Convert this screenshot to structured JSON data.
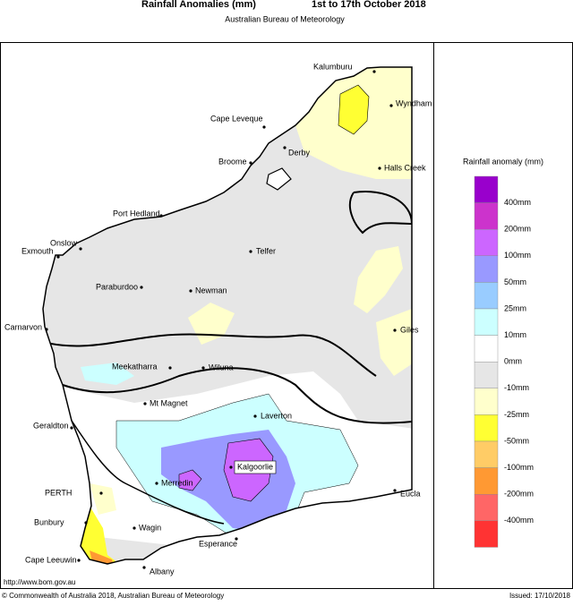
{
  "header": {
    "title": "Rainfall Anomalies (mm)",
    "period": "1st to 17th October 2018",
    "subtitle": "Australian Bureau of Meteorology"
  },
  "map": {
    "places": [
      "Kalumburu",
      "Wyndham",
      "Cape Leveque",
      "Derby",
      "Halls Creek",
      "Broome",
      "Port Hedland",
      "Onslow",
      "Exmouth",
      "Telfer",
      "Paraburdoo",
      "Newman",
      "Carnarvon",
      "Giles",
      "Meekatharra",
      "Wiluna",
      "Mt Magnet",
      "Laverton",
      "Geraldton",
      "Kalgoorlie",
      "Merredin",
      "PERTH",
      "Eucla",
      "Bunbury",
      "Wagin",
      "Esperance",
      "Cape Leeuwin",
      "Albany"
    ]
  },
  "legend": {
    "title": "Rainfall anomaly (mm)",
    "colors": [
      "#9900cc",
      "#cc33cc",
      "#cc66ff",
      "#9999ff",
      "#99ccff",
      "#ccffff",
      "#ffffff",
      "#e6e6e6",
      "#ffffcc",
      "#ffff33",
      "#ffcc66",
      "#ff9933",
      "#ff6666",
      "#ff3333"
    ],
    "labels": [
      "400mm",
      "200mm",
      "100mm",
      "50mm",
      "25mm",
      "10mm",
      "0mm",
      "-10mm",
      "-25mm",
      "-50mm",
      "-100mm",
      "-200mm",
      "-400mm"
    ]
  },
  "footer": {
    "url": "http://www.bom.gov.au",
    "copyright": "© Commonwealth of Australia 2018, Australian Bureau of Meteorology",
    "issued": "Issued: 17/10/2018"
  }
}
